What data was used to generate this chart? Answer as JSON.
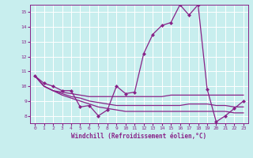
{
  "xlabel": "Windchill (Refroidissement éolien,°C)",
  "background_color": "#c8eeee",
  "grid_color": "#ffffff",
  "line_color": "#882288",
  "xlim": [
    -0.5,
    23.5
  ],
  "ylim": [
    7.5,
    15.5
  ],
  "xticks": [
    0,
    1,
    2,
    3,
    4,
    5,
    6,
    7,
    8,
    9,
    10,
    11,
    12,
    13,
    14,
    15,
    16,
    17,
    18,
    19,
    20,
    21,
    22,
    23
  ],
  "yticks": [
    8,
    9,
    10,
    11,
    12,
    13,
    14,
    15
  ],
  "series_main": [
    10.7,
    10.2,
    10.0,
    9.7,
    9.7,
    8.6,
    8.7,
    8.0,
    8.4,
    10.0,
    9.5,
    9.6,
    12.2,
    13.5,
    14.1,
    14.3,
    15.5,
    14.8,
    15.5,
    9.8,
    7.6,
    8.0,
    8.5,
    9.0
  ],
  "series_trend1": [
    10.7,
    10.0,
    9.7,
    9.6,
    9.5,
    9.4,
    9.3,
    9.3,
    9.3,
    9.3,
    9.3,
    9.3,
    9.3,
    9.3,
    9.3,
    9.4,
    9.4,
    9.4,
    9.4,
    9.4,
    9.4,
    9.4,
    9.4,
    9.4
  ],
  "series_trend2": [
    10.7,
    10.0,
    9.7,
    9.5,
    9.3,
    9.2,
    9.0,
    8.9,
    8.8,
    8.7,
    8.7,
    8.7,
    8.7,
    8.7,
    8.7,
    8.7,
    8.7,
    8.8,
    8.8,
    8.8,
    8.7,
    8.7,
    8.6,
    8.6
  ],
  "series_trend3": [
    10.7,
    10.0,
    9.7,
    9.4,
    9.2,
    9.0,
    8.8,
    8.6,
    8.5,
    8.4,
    8.3,
    8.3,
    8.3,
    8.3,
    8.3,
    8.3,
    8.3,
    8.3,
    8.3,
    8.3,
    8.3,
    8.3,
    8.2,
    8.2
  ],
  "marker": "D",
  "markersize": 2.0,
  "linewidth": 0.9
}
